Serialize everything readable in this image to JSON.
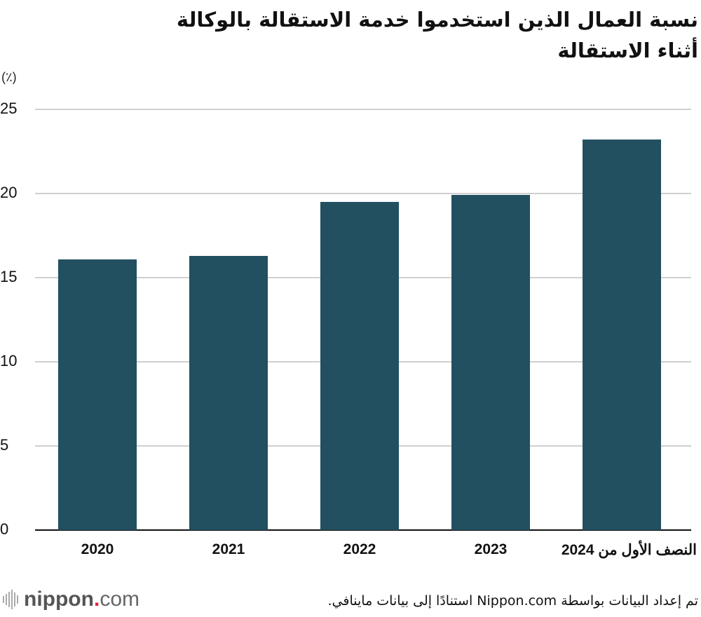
{
  "title": {
    "line1": "نسبة العمال الذين استخدموا خدمة الاستقالة بالوكالة",
    "line2": "أثناء الاستقالة"
  },
  "unit_label": "(٪)",
  "source": "تم إعداد البيانات بواسطة Nippon.com استنادًا إلى بيانات ماينافي.",
  "logo": {
    "name": "nippon",
    "dot": ".",
    "tld": "com",
    "accent": "#e8203a"
  },
  "colors": {
    "bar": "#225060",
    "grid": "#d0d0d0",
    "axis": "#111111"
  },
  "chart_data": {
    "type": "bar",
    "title": "نسبة العمال الذين استخدموا خدمة الاستقالة بالوكالة أثناء الاستقالة",
    "xlabel": "",
    "ylabel": "(٪)",
    "categories": [
      "2020",
      "2021",
      "2022",
      "2023",
      "النصف الأول من 2024"
    ],
    "values": [
      16.1,
      16.3,
      19.5,
      19.9,
      23.2
    ],
    "ylim": [
      0,
      25
    ],
    "yticks": [
      "0",
      "5",
      "10",
      "15",
      "20",
      "25"
    ],
    "grid": true,
    "legend": null
  }
}
